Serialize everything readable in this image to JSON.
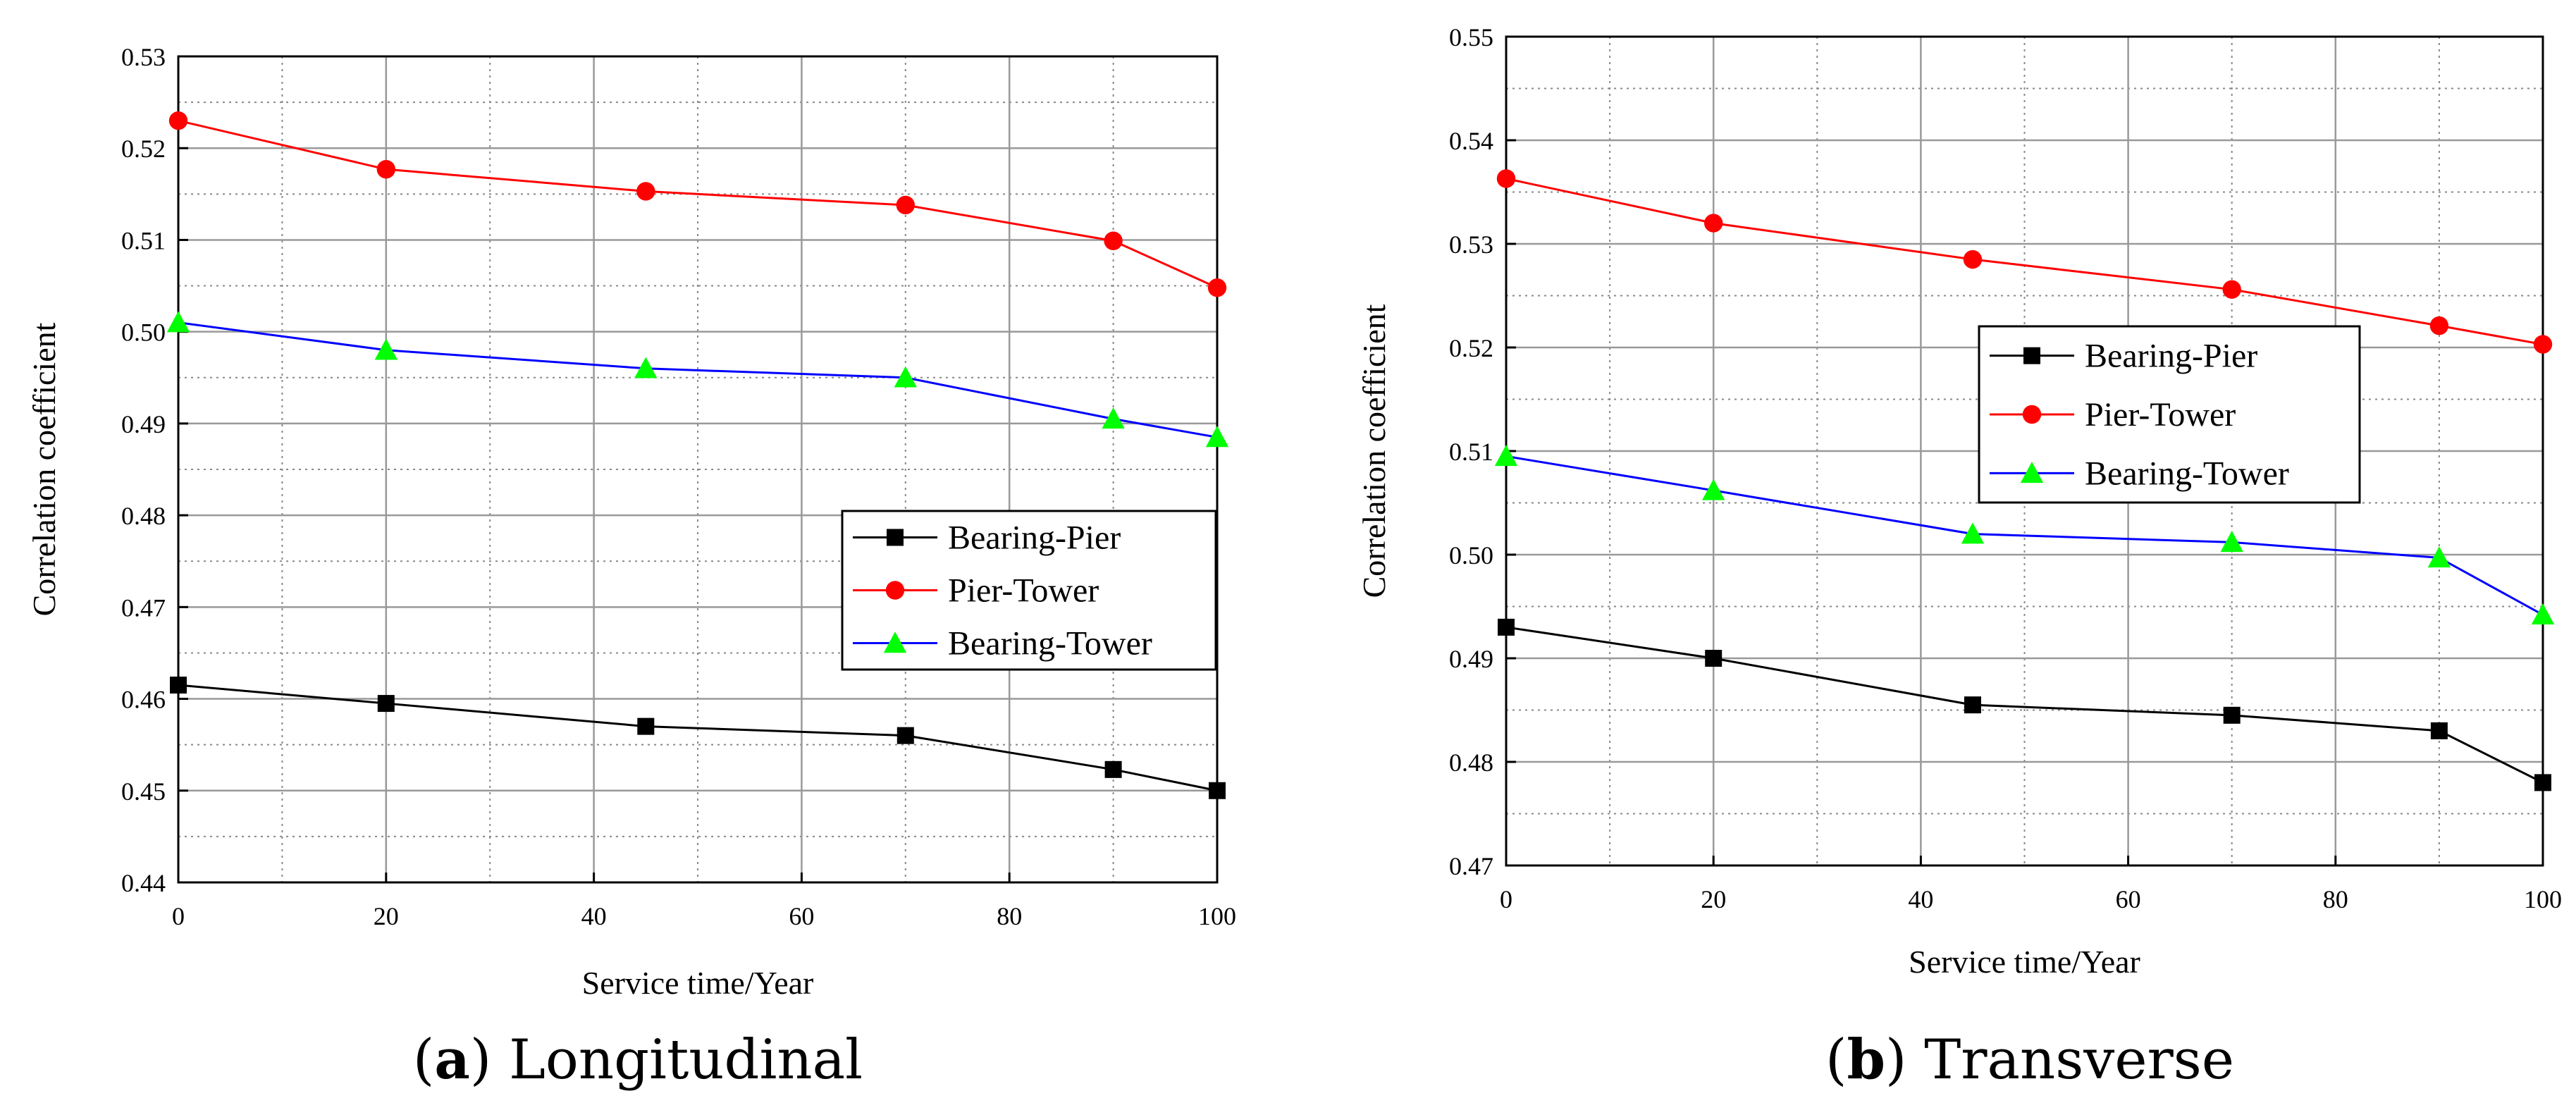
{
  "chart_data": [
    {
      "type": "line",
      "caption_letter": "a",
      "caption_text": "Longitudinal",
      "xlabel": "Service time/Year",
      "ylabel": "Correlation coefficient",
      "xlim": [
        0,
        100
      ],
      "ylim": [
        0.44,
        0.53
      ],
      "xticks": [
        0,
        20,
        40,
        60,
        80,
        100
      ],
      "yticks": [
        0.44,
        0.45,
        0.46,
        0.47,
        0.48,
        0.49,
        0.5,
        0.51,
        0.52,
        0.53
      ],
      "ytick_labels": [
        "0.44",
        "0.45",
        "0.46",
        "0.47",
        "0.48",
        "0.49",
        "0.50",
        "0.51",
        "0.52",
        "0.53"
      ],
      "x": [
        0,
        20,
        45,
        70,
        90,
        100
      ],
      "grid": true,
      "legend_position": "lower-right",
      "series": [
        {
          "name": "Bearing-Pier",
          "color": "#000000",
          "marker": "square",
          "line_color": "#000000",
          "values": [
            0.4615,
            0.4595,
            0.457,
            0.456,
            0.4523,
            0.45
          ]
        },
        {
          "name": "Pier-Tower",
          "color": "#ff0000",
          "marker": "circle",
          "line_color": "#ff0000",
          "values": [
            0.523,
            0.5177,
            0.5153,
            0.5138,
            0.5099,
            0.5048
          ]
        },
        {
          "name": "Bearing-Tower",
          "color": "#00ff00",
          "marker": "triangle",
          "line_color": "#0000ff",
          "values": [
            0.501,
            0.498,
            0.496,
            0.495,
            0.4905,
            0.4885
          ]
        }
      ]
    },
    {
      "type": "line",
      "caption_letter": "b",
      "caption_text": "Transverse",
      "xlabel": "Service time/Year",
      "ylabel": "Correlation coefficient",
      "xlim": [
        0,
        100
      ],
      "ylim": [
        0.47,
        0.55
      ],
      "xticks": [
        0,
        20,
        40,
        60,
        80,
        100
      ],
      "yticks": [
        0.47,
        0.48,
        0.49,
        0.5,
        0.51,
        0.52,
        0.53,
        0.54,
        0.55
      ],
      "ytick_labels": [
        "0.47",
        "0.48",
        "0.49",
        "0.50",
        "0.51",
        "0.52",
        "0.53",
        "0.54",
        "0.55"
      ],
      "x": [
        0,
        20,
        45,
        70,
        90,
        100
      ],
      "grid": true,
      "legend_position": "center-right",
      "series": [
        {
          "name": "Bearing-Pier",
          "color": "#000000",
          "marker": "square",
          "line_color": "#000000",
          "values": [
            0.493,
            0.49,
            0.4855,
            0.4845,
            0.483,
            0.478
          ]
        },
        {
          "name": "Pier-Tower",
          "color": "#ff0000",
          "marker": "circle",
          "line_color": "#ff0000",
          "values": [
            0.5363,
            0.532,
            0.5285,
            0.5256,
            0.5221,
            0.5203
          ]
        },
        {
          "name": "Bearing-Tower",
          "color": "#00ff00",
          "marker": "triangle",
          "line_color": "#0000ff",
          "values": [
            0.5095,
            0.5062,
            0.502,
            0.5012,
            0.4997,
            0.4942
          ]
        }
      ]
    }
  ]
}
